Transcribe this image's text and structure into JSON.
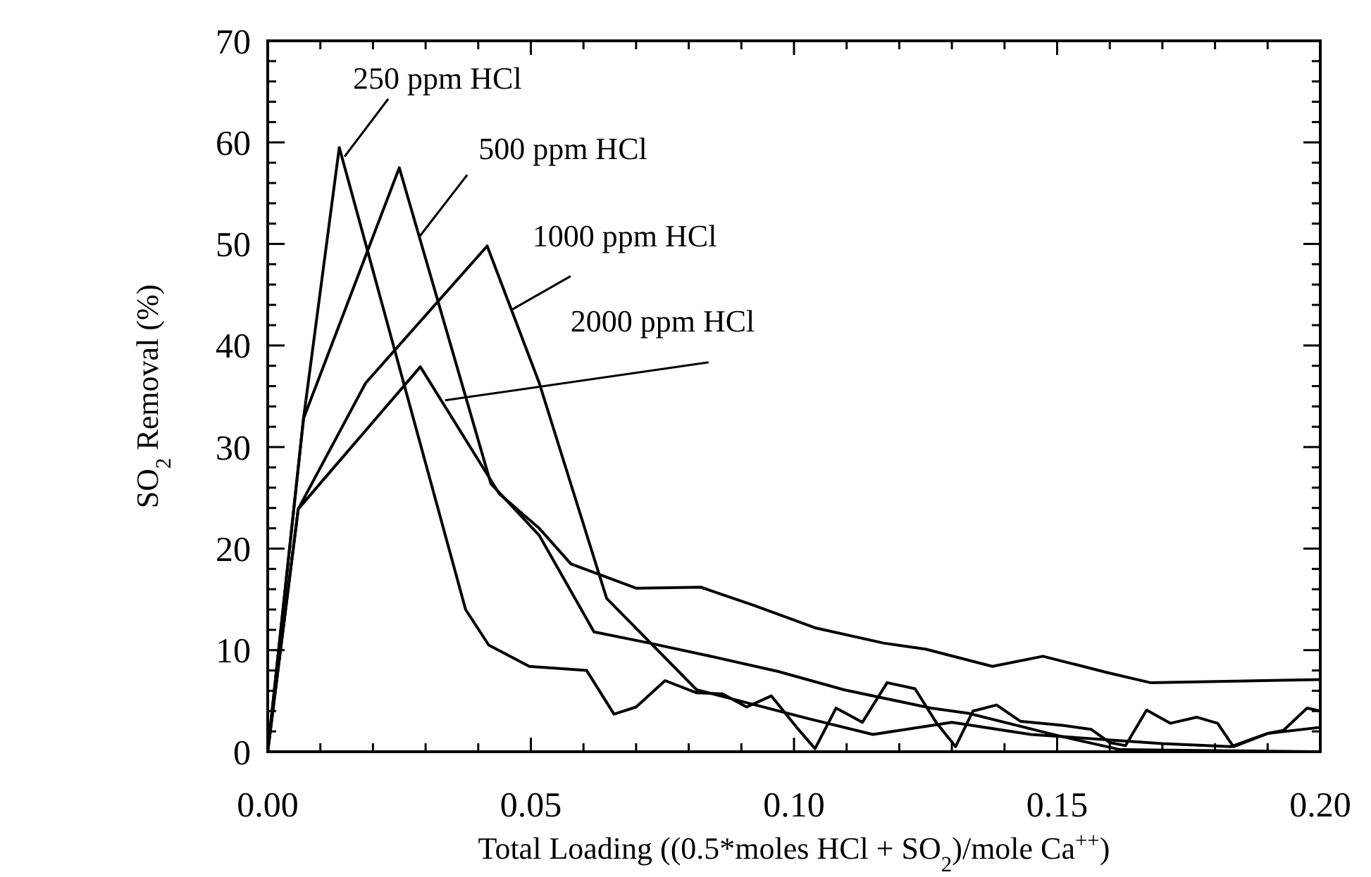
{
  "chart_data": {
    "type": "line",
    "xlabel": "Total Loading ((0.5*moles HCl + SO$_{2}$)/mole Ca$^{++}$)",
    "ylabel": "SO$_{2}$ Removal (%)",
    "xlim": [
      0,
      0.2
    ],
    "ylim": [
      0,
      70
    ],
    "xticks": [
      {
        "value": 0,
        "label": "0.00"
      },
      {
        "value": 0.01,
        "label": null
      },
      {
        "value": 0.02,
        "label": null
      },
      {
        "value": 0.03,
        "label": null
      },
      {
        "value": 0.04,
        "label": null
      },
      {
        "value": 0.05,
        "label": "0.05"
      },
      {
        "value": 0.06,
        "label": null
      },
      {
        "value": 0.07,
        "label": null
      },
      {
        "value": 0.08,
        "label": null
      },
      {
        "value": 0.09,
        "label": null
      },
      {
        "value": 0.1,
        "label": "0.10"
      },
      {
        "value": 0.11,
        "label": null
      },
      {
        "value": 0.12,
        "label": null
      },
      {
        "value": 0.13,
        "label": null
      },
      {
        "value": 0.14,
        "label": null
      },
      {
        "value": 0.15,
        "label": "0.15"
      },
      {
        "value": 0.16,
        "label": null
      },
      {
        "value": 0.17,
        "label": null
      },
      {
        "value": 0.18,
        "label": null
      },
      {
        "value": 0.19,
        "label": null
      },
      {
        "value": 0.2,
        "label": "0.20"
      }
    ],
    "yticks": [
      0,
      {
        "value": 2,
        "label": null
      },
      {
        "value": 4,
        "label": null
      },
      {
        "value": 6,
        "label": null
      },
      {
        "value": 8,
        "label": null
      },
      10,
      {
        "value": 12,
        "label": null
      },
      {
        "value": 14,
        "label": null
      },
      {
        "value": 16,
        "label": null
      },
      {
        "value": 18,
        "label": null
      },
      20,
      {
        "value": 22,
        "label": null
      },
      {
        "value": 24,
        "label": null
      },
      {
        "value": 26,
        "label": null
      },
      {
        "value": 28,
        "label": null
      },
      30,
      {
        "value": 32,
        "label": null
      },
      {
        "value": 34,
        "label": null
      },
      {
        "value": 36,
        "label": null
      },
      {
        "value": 38,
        "label": null
      },
      40,
      {
        "value": 42,
        "label": null
      },
      {
        "value": 44,
        "label": null
      },
      {
        "value": 46,
        "label": null
      },
      {
        "value": 48,
        "label": null
      },
      50,
      {
        "value": 52,
        "label": null
      },
      {
        "value": 54,
        "label": null
      },
      {
        "value": 56,
        "label": null
      },
      {
        "value": 58,
        "label": null
      },
      60,
      {
        "value": 62,
        "label": null
      },
      {
        "value": 64,
        "label": null
      },
      {
        "value": 66,
        "label": null
      },
      {
        "value": 68,
        "label": null
      },
      70
    ],
    "marker": "none",
    "line_style": "solid",
    "series": [
      {
        "color": "#000000",
        "x": [
          0,
          0.0068,
          0.0136,
          0.0376,
          0.042,
          0.0497,
          0.0606,
          0.0658,
          0.07,
          0.0755,
          0.0815,
          0.0864,
          0.091,
          0.0957,
          0.1005,
          0.104,
          0.108,
          0.113,
          0.1177,
          0.123,
          0.127,
          0.1307,
          0.134,
          0.1385,
          0.143,
          0.151,
          0.1565,
          0.16,
          0.163,
          0.167,
          0.1715,
          0.1765,
          0.1805,
          0.1835,
          0.19,
          0.193,
          0.1975,
          0.2
        ],
        "values": [
          0,
          32.8,
          59.5,
          14,
          10.5,
          8.4,
          8,
          3.7,
          4.4,
          7,
          5.8,
          5.7,
          4.4,
          5.5,
          2.4,
          0.3,
          4.3,
          2.9,
          6.8,
          6.2,
          2.9,
          0.5,
          4,
          4.6,
          3,
          2.6,
          2.2,
          0.9,
          0.6,
          4.1,
          2.8,
          3.4,
          2.8,
          0.5,
          1.8,
          2.1,
          4.3,
          4
        ]
      },
      {
        "color": "#000000",
        "x": [
          0,
          0.0068,
          0.025,
          0.0424,
          0.0516,
          0.062,
          0.0725,
          0.085,
          0.097,
          0.1095,
          0.126,
          0.133,
          0.15,
          0.162,
          0.18,
          0.2
        ],
        "values": [
          0,
          32.8,
          57.5,
          26.4,
          21.3,
          11.8,
          10.7,
          9.3,
          7.9,
          6.1,
          4.3,
          3.8,
          1.6,
          0.2,
          0.1,
          0
        ]
      },
      {
        "color": "#000000",
        "x": [
          0,
          0.0058,
          0.0186,
          0.0417,
          0.0516,
          0.0644,
          0.0815,
          0.1024,
          0.115,
          0.13,
          0.145,
          0.17,
          0.183,
          0.19,
          0.2
        ],
        "values": [
          0,
          23.9,
          36.3,
          49.8,
          36.3,
          15.1,
          6.1,
          3.3,
          1.7,
          2.9,
          1.7,
          0.8,
          0.5,
          1.8,
          2.4
        ]
      },
      {
        "color": "#000000",
        "x": [
          0,
          0.0058,
          0.029,
          0.044,
          0.0516,
          0.0576,
          0.07,
          0.0823,
          0.0924,
          0.104,
          0.117,
          0.125,
          0.1377,
          0.1473,
          0.1595,
          0.1677,
          0.2
        ],
        "values": [
          0,
          23.9,
          37.9,
          25.4,
          22,
          18.5,
          16.1,
          16.2,
          14.4,
          12.2,
          10.7,
          10.1,
          8.4,
          9.4,
          7.8,
          6.8,
          7.1
        ]
      }
    ],
    "annotations": [
      {
        "text": "250 ppm HCl",
        "x": 0.0146,
        "y": 58.6
      },
      {
        "text": "500 ppm HCl",
        "x": 0.0288,
        "y": 50.7
      },
      {
        "text": "1000 ppm HCl",
        "x": 0.0463,
        "y": 43.5
      },
      {
        "text": "2000 ppm HCl",
        "x": 0.0337,
        "y": 34.6
      }
    ]
  }
}
